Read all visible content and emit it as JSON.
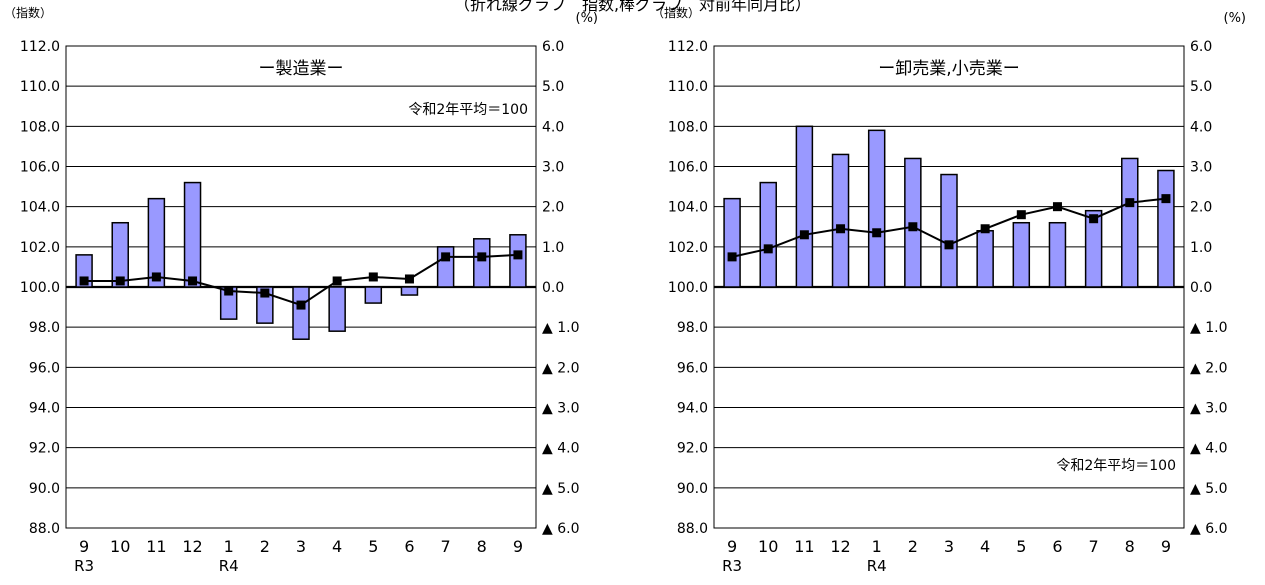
{
  "top_caption": "（折れ線グラフ　指数,棒グラフ　対前年同月比）",
  "bar_color": "#9999ff",
  "line_color": "#000000",
  "chart_data": [
    {
      "type": "bar+line",
      "title": "ー製造業ー",
      "note": "令和2年平均＝100",
      "note_position": "top-right",
      "left_axis_unit": "（指数）",
      "right_axis_unit": "(%)",
      "categories": [
        "9",
        "10",
        "11",
        "12",
        "1",
        "2",
        "3",
        "4",
        "5",
        "6",
        "7",
        "8",
        "9"
      ],
      "year_labels": [
        {
          "label": "R3",
          "at": 0
        },
        {
          "label": "R4",
          "at": 4
        }
      ],
      "left_ticks": [
        "112.0",
        "110.0",
        "108.0",
        "106.0",
        "104.0",
        "102.0",
        "100.0",
        "98.0",
        "96.0",
        "94.0",
        "92.0",
        "90.0",
        "88.0"
      ],
      "right_ticks": [
        "6.0",
        "5.0",
        "4.0",
        "3.0",
        "2.0",
        "1.0",
        "0.0",
        "▲ 1.0",
        "▲ 2.0",
        "▲ 3.0",
        "▲ 4.0",
        "▲ 5.0",
        "▲ 6.0"
      ],
      "left_ylim": [
        88,
        112
      ],
      "right_ylim": [
        -6,
        6
      ],
      "grid": true,
      "series": [
        {
          "kind": "bar",
          "axis": "right",
          "values": [
            0.8,
            1.6,
            2.2,
            2.6,
            -0.8,
            -0.9,
            -1.3,
            -1.1,
            -0.4,
            -0.2,
            1.0,
            1.2,
            1.3
          ]
        },
        {
          "kind": "line",
          "axis": "left",
          "values": [
            100.3,
            100.3,
            100.5,
            100.3,
            99.8,
            99.7,
            99.1,
            100.3,
            100.5,
            100.4,
            101.5,
            101.5,
            101.6
          ]
        }
      ]
    },
    {
      "type": "bar+line",
      "title": "ー卸売業,小売業ー",
      "note": "令和2年平均＝100",
      "note_position": "bottom-right",
      "left_axis_unit": "（指数）",
      "right_axis_unit": "(%)",
      "categories": [
        "9",
        "10",
        "11",
        "12",
        "1",
        "2",
        "3",
        "4",
        "5",
        "6",
        "7",
        "8",
        "9"
      ],
      "year_labels": [
        {
          "label": "R3",
          "at": 0
        },
        {
          "label": "R4",
          "at": 4
        }
      ],
      "left_ticks": [
        "112.0",
        "110.0",
        "108.0",
        "106.0",
        "104.0",
        "102.0",
        "100.0",
        "98.0",
        "96.0",
        "94.0",
        "92.0",
        "90.0",
        "88.0"
      ],
      "right_ticks": [
        "6.0",
        "5.0",
        "4.0",
        "3.0",
        "2.0",
        "1.0",
        "0.0",
        "▲ 1.0",
        "▲ 2.0",
        "▲ 3.0",
        "▲ 4.0",
        "▲ 5.0",
        "▲ 6.0"
      ],
      "left_ylim": [
        88,
        112
      ],
      "right_ylim": [
        -6,
        6
      ],
      "grid": true,
      "series": [
        {
          "kind": "bar",
          "axis": "right",
          "values": [
            2.2,
            2.6,
            4.0,
            3.3,
            3.9,
            3.2,
            2.8,
            1.4,
            1.6,
            1.6,
            1.9,
            3.2,
            2.9
          ]
        },
        {
          "kind": "line",
          "axis": "left",
          "values": [
            101.5,
            101.9,
            102.6,
            102.9,
            102.7,
            103.0,
            102.1,
            102.9,
            103.6,
            104.0,
            103.4,
            104.2,
            104.4
          ]
        }
      ]
    }
  ]
}
